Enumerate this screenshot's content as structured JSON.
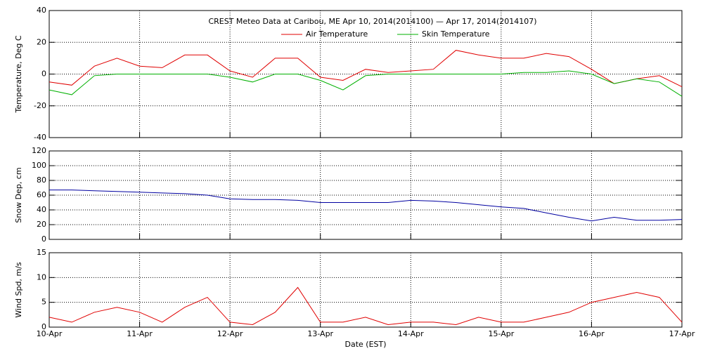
{
  "chart_data": [
    {
      "type": "line",
      "title": "CREST Meteo Data at Caribou, ME   Apr 10, 2014(2014100) — Apr 17, 2014(2014107)",
      "ylabel": "Temperature, Deg C",
      "x": [
        0,
        6,
        12,
        18,
        24,
        30,
        36,
        42,
        48,
        54,
        60,
        66,
        72,
        78,
        84,
        90,
        96,
        102,
        108,
        114,
        120,
        126,
        132,
        138,
        144,
        150,
        156,
        162,
        168
      ],
      "series": [
        {
          "name": "Air Temperature",
          "color": "#e00000",
          "values": [
            -5,
            -7,
            5,
            10,
            5,
            4,
            12,
            12,
            2,
            -2,
            10,
            10,
            -2,
            -4,
            3,
            1,
            2,
            3,
            15,
            12,
            10,
            10,
            13,
            11,
            3,
            -6,
            -3,
            -1,
            -8
          ]
        },
        {
          "name": "Skin Temperature",
          "color": "#00b000",
          "values": [
            -10,
            -13,
            -1,
            0,
            0,
            0,
            0,
            0,
            -2,
            -5,
            0,
            0,
            -4,
            -10,
            -1,
            0,
            0,
            0,
            0,
            0,
            0,
            1,
            1,
            2,
            0,
            -6,
            -3,
            -5,
            -14
          ]
        }
      ],
      "xlim": [
        0,
        168
      ],
      "xticks": [
        0,
        24,
        48,
        72,
        96,
        120,
        144,
        168
      ],
      "ylim": [
        -40,
        40
      ],
      "yticks": [
        -40,
        -20,
        0,
        20,
        40
      ],
      "grid": true
    },
    {
      "type": "line",
      "ylabel": "Snow Dep, cm",
      "x": [
        0,
        6,
        12,
        18,
        24,
        30,
        36,
        42,
        48,
        54,
        60,
        66,
        72,
        78,
        84,
        90,
        96,
        102,
        108,
        114,
        120,
        126,
        132,
        138,
        144,
        150,
        156,
        162,
        168
      ],
      "series": [
        {
          "name": "Snow Depth",
          "color": "#0000a0",
          "values": [
            67,
            67,
            66,
            65,
            64,
            63,
            62,
            60,
            55,
            54,
            54,
            53,
            50,
            50,
            50,
            50,
            53,
            52,
            50,
            47,
            44,
            42,
            36,
            30,
            25,
            30,
            26,
            26,
            27
          ]
        }
      ],
      "xlim": [
        0,
        168
      ],
      "xticks": [
        0,
        24,
        48,
        72,
        96,
        120,
        144,
        168
      ],
      "ylim": [
        0,
        120
      ],
      "yticks": [
        0,
        20,
        40,
        60,
        80,
        100,
        120
      ],
      "grid": true
    },
    {
      "type": "line",
      "ylabel": "Wind Spd, m/s",
      "xlabel": "Date (EST)",
      "x": [
        0,
        6,
        12,
        18,
        24,
        30,
        36,
        42,
        48,
        54,
        60,
        66,
        72,
        78,
        84,
        90,
        96,
        102,
        108,
        114,
        120,
        126,
        132,
        138,
        144,
        150,
        156,
        162,
        168
      ],
      "series": [
        {
          "name": "Wind Speed",
          "color": "#e00000",
          "values": [
            2,
            1,
            3,
            4,
            3,
            1,
            4,
            6,
            1,
            0.5,
            3,
            8,
            1,
            1,
            2,
            0.5,
            1,
            1,
            0.5,
            2,
            1,
            1,
            2,
            3,
            5,
            6,
            7,
            6,
            1
          ]
        }
      ],
      "xlim": [
        0,
        168
      ],
      "xticks": [
        {
          "value": 0,
          "label": "10-Apr"
        },
        {
          "value": 24,
          "label": "11-Apr"
        },
        {
          "value": 48,
          "label": "12-Apr"
        },
        {
          "value": 72,
          "label": "13-Apr"
        },
        {
          "value": 96,
          "label": "14-Apr"
        },
        {
          "value": 120,
          "label": "15-Apr"
        },
        {
          "value": 144,
          "label": "16-Apr"
        },
        {
          "value": 168,
          "label": "17-Apr"
        }
      ],
      "ylim": [
        0,
        15
      ],
      "yticks": [
        0,
        5,
        10,
        15
      ],
      "grid": true
    }
  ]
}
